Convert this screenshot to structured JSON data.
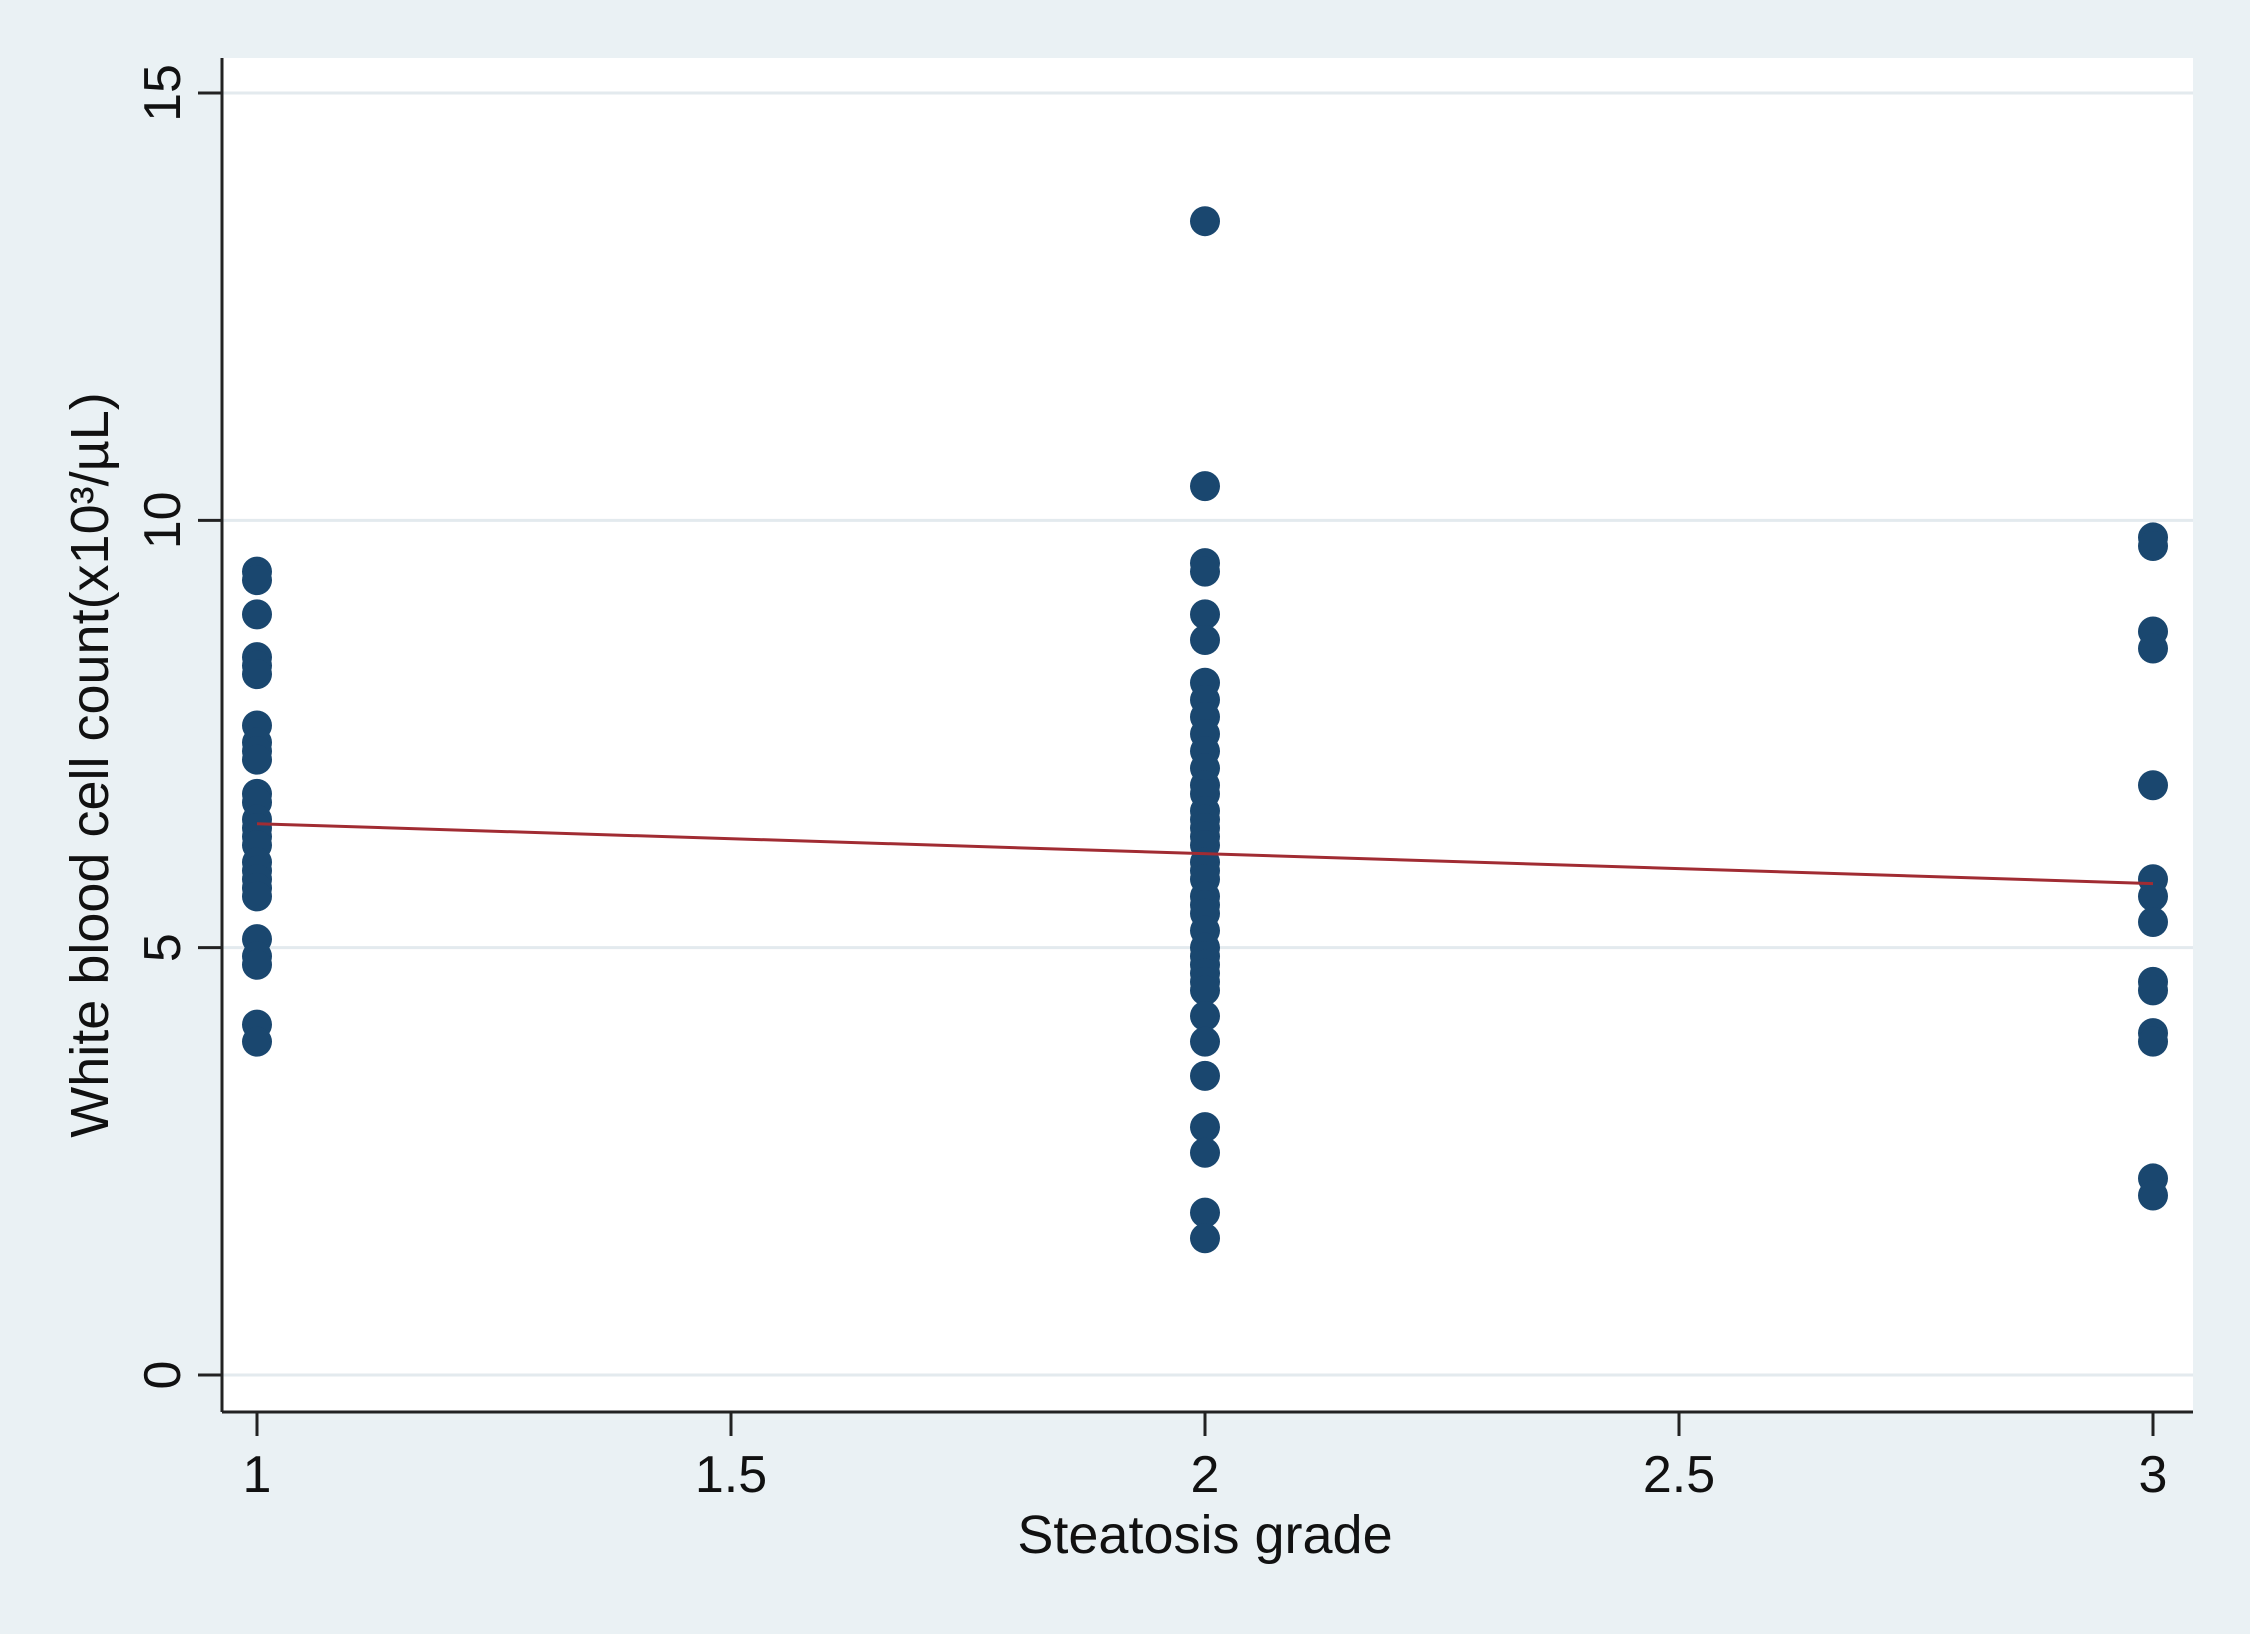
{
  "chart_data": {
    "type": "scatter",
    "title": "",
    "xlabel": "Steatosis grade",
    "ylabel": "White blood cell count(x10³/µL)",
    "xlim": [
      1,
      3
    ],
    "ylim": [
      0,
      15
    ],
    "x_ticks": [
      "1",
      "1.5",
      "2",
      "2.5",
      "3"
    ],
    "y_ticks": [
      "0",
      "5",
      "10",
      "15"
    ],
    "grid": true,
    "legend": "none",
    "colors": {
      "background": "#eaf1f4",
      "plot_background": "#ffffff",
      "grid": "#e3eaee",
      "points": "#1a476f",
      "fit_line": "#a12c33",
      "axis": "#222222"
    },
    "series": [
      {
        "values": [
          {
            "x": 1,
            "y": 9.4
          },
          {
            "x": 1,
            "y": 9.3
          },
          {
            "x": 1,
            "y": 8.9
          },
          {
            "x": 1,
            "y": 8.4
          },
          {
            "x": 1,
            "y": 8.3
          },
          {
            "x": 1,
            "y": 8.2
          },
          {
            "x": 1,
            "y": 7.6
          },
          {
            "x": 1,
            "y": 7.4
          },
          {
            "x": 1,
            "y": 7.3
          },
          {
            "x": 1,
            "y": 7.2
          },
          {
            "x": 1,
            "y": 6.8
          },
          {
            "x": 1,
            "y": 6.7
          },
          {
            "x": 1,
            "y": 6.5
          },
          {
            "x": 1,
            "y": 6.4
          },
          {
            "x": 1,
            "y": 6.3
          },
          {
            "x": 1,
            "y": 6.2
          },
          {
            "x": 1,
            "y": 6.0
          },
          {
            "x": 1,
            "y": 5.9
          },
          {
            "x": 1,
            "y": 5.8
          },
          {
            "x": 1,
            "y": 5.7
          },
          {
            "x": 1,
            "y": 5.6
          },
          {
            "x": 1,
            "y": 5.1
          },
          {
            "x": 1,
            "y": 4.9
          },
          {
            "x": 1,
            "y": 4.8
          },
          {
            "x": 1,
            "y": 4.1
          },
          {
            "x": 1,
            "y": 3.9
          },
          {
            "x": 2,
            "y": 13.5
          },
          {
            "x": 2,
            "y": 10.4
          },
          {
            "x": 2,
            "y": 9.5
          },
          {
            "x": 2,
            "y": 9.4
          },
          {
            "x": 2,
            "y": 8.9
          },
          {
            "x": 2,
            "y": 8.6
          },
          {
            "x": 2,
            "y": 8.1
          },
          {
            "x": 2,
            "y": 7.9
          },
          {
            "x": 2,
            "y": 7.7
          },
          {
            "x": 2,
            "y": 7.5
          },
          {
            "x": 2,
            "y": 7.3
          },
          {
            "x": 2,
            "y": 7.1
          },
          {
            "x": 2,
            "y": 6.9
          },
          {
            "x": 2,
            "y": 6.8
          },
          {
            "x": 2,
            "y": 6.6
          },
          {
            "x": 2,
            "y": 6.5
          },
          {
            "x": 2,
            "y": 6.4
          },
          {
            "x": 2,
            "y": 6.3
          },
          {
            "x": 2,
            "y": 6.2
          },
          {
            "x": 2,
            "y": 6.0
          },
          {
            "x": 2,
            "y": 5.9
          },
          {
            "x": 2,
            "y": 5.8
          },
          {
            "x": 2,
            "y": 5.6
          },
          {
            "x": 2,
            "y": 5.5
          },
          {
            "x": 2,
            "y": 5.4
          },
          {
            "x": 2,
            "y": 5.2
          },
          {
            "x": 2,
            "y": 5.0
          },
          {
            "x": 2,
            "y": 4.9
          },
          {
            "x": 2,
            "y": 4.8
          },
          {
            "x": 2,
            "y": 4.7
          },
          {
            "x": 2,
            "y": 4.6
          },
          {
            "x": 2,
            "y": 4.5
          },
          {
            "x": 2,
            "y": 4.2
          },
          {
            "x": 2,
            "y": 3.9
          },
          {
            "x": 2,
            "y": 3.5
          },
          {
            "x": 2,
            "y": 2.9
          },
          {
            "x": 2,
            "y": 2.6
          },
          {
            "x": 2,
            "y": 1.9
          },
          {
            "x": 2,
            "y": 1.6
          },
          {
            "x": 3,
            "y": 9.8
          },
          {
            "x": 3,
            "y": 9.7
          },
          {
            "x": 3,
            "y": 8.7
          },
          {
            "x": 3,
            "y": 8.5
          },
          {
            "x": 3,
            "y": 6.9
          },
          {
            "x": 3,
            "y": 5.8
          },
          {
            "x": 3,
            "y": 5.6
          },
          {
            "x": 3,
            "y": 5.3
          },
          {
            "x": 3,
            "y": 4.6
          },
          {
            "x": 3,
            "y": 4.5
          },
          {
            "x": 3,
            "y": 4.0
          },
          {
            "x": 3,
            "y": 3.9
          },
          {
            "x": 3,
            "y": 2.3
          },
          {
            "x": 3,
            "y": 2.1
          }
        ]
      }
    ],
    "fit_line": {
      "x": [
        1,
        3
      ],
      "y": [
        6.45,
        5.75
      ]
    }
  }
}
